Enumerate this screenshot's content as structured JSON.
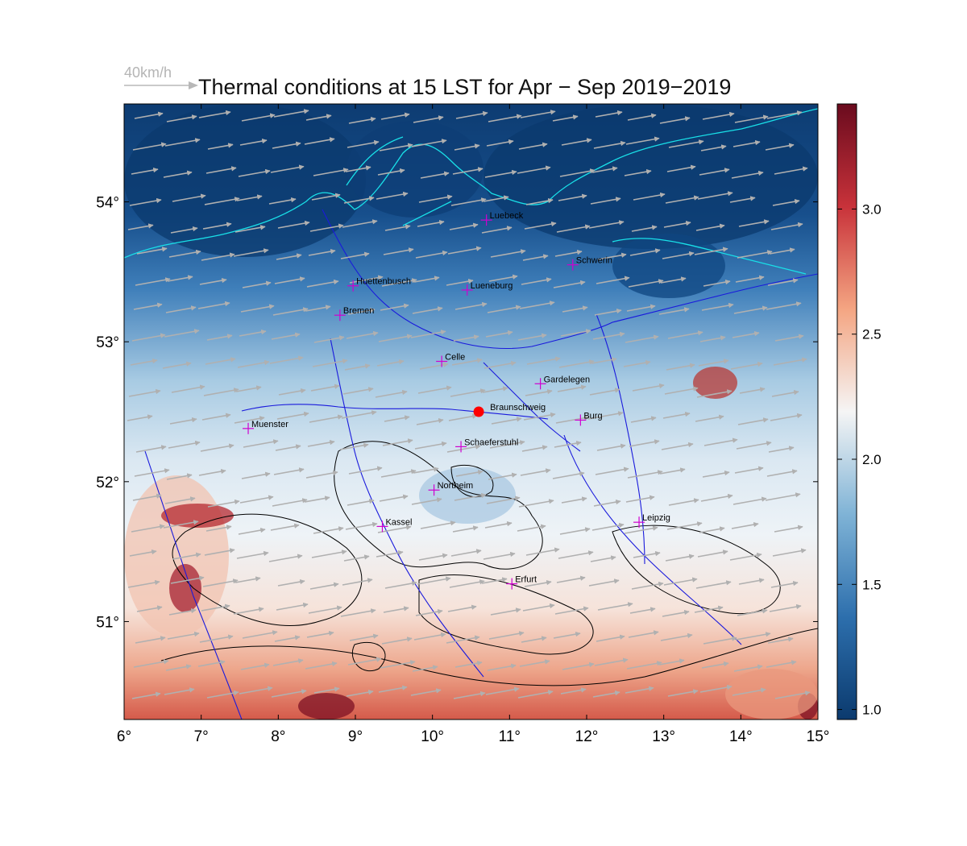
{
  "title": "Thermal conditions at 15 LST for Apr − Sep  2019−2019",
  "wind_reference": {
    "label": "40km/h",
    "speed_kmh": 40
  },
  "axes": {
    "lon_range": [
      6,
      15
    ],
    "lat_range": [
      50.3,
      54.7
    ],
    "x_ticks": [
      "6°",
      "7°",
      "8°",
      "9°",
      "10°",
      "11°",
      "12°",
      "13°",
      "14°",
      "15°"
    ],
    "y_ticks": [
      "51°",
      "52°",
      "53°",
      "54°"
    ]
  },
  "colorbar": {
    "range": [
      0.96,
      3.42
    ],
    "ticks": [
      "1.0",
      "1.5",
      "2.0",
      "2.5",
      "3.0"
    ],
    "tick_values": [
      1.0,
      1.5,
      2.0,
      2.5,
      3.0
    ],
    "colors": [
      "#0b3a6e",
      "#2d6fad",
      "#7fb3d6",
      "#f5f5f5",
      "#f4a582",
      "#c8323a",
      "#6a0b1e"
    ]
  },
  "cities": [
    {
      "name": "Luebeck",
      "lon": 10.7,
      "lat": 53.87
    },
    {
      "name": "Schwerin",
      "lon": 11.82,
      "lat": 53.55
    },
    {
      "name": "Huettenbusch",
      "lon": 8.97,
      "lat": 53.4
    },
    {
      "name": "Lueneburg",
      "lon": 10.45,
      "lat": 53.37
    },
    {
      "name": "Bremen",
      "lon": 8.8,
      "lat": 53.19
    },
    {
      "name": "Celle",
      "lon": 10.12,
      "lat": 52.86
    },
    {
      "name": "Gardelegen",
      "lon": 11.4,
      "lat": 52.7
    },
    {
      "name": "Braunschweig",
      "lon": 10.6,
      "lat": 52.5,
      "highlight": true
    },
    {
      "name": "Burg",
      "lon": 11.92,
      "lat": 52.44
    },
    {
      "name": "Muenster",
      "lon": 7.61,
      "lat": 52.38
    },
    {
      "name": "Schaeferstuhl",
      "lon": 10.37,
      "lat": 52.25
    },
    {
      "name": "Northeim",
      "lon": 10.02,
      "lat": 51.94
    },
    {
      "name": "Kassel",
      "lon": 9.35,
      "lat": 51.68
    },
    {
      "name": "Leipzig",
      "lon": 12.68,
      "lat": 51.71
    },
    {
      "name": "Erfurt",
      "lon": 11.03,
      "lat": 51.27
    }
  ],
  "colors": {
    "city_marker": "#d000d0",
    "highlight_marker": "#ff0000",
    "rivers": "#1a1adc",
    "coast": "#19e0e8",
    "wind_arrows": "#b0b0b0",
    "terrain_contours": "#000000"
  }
}
